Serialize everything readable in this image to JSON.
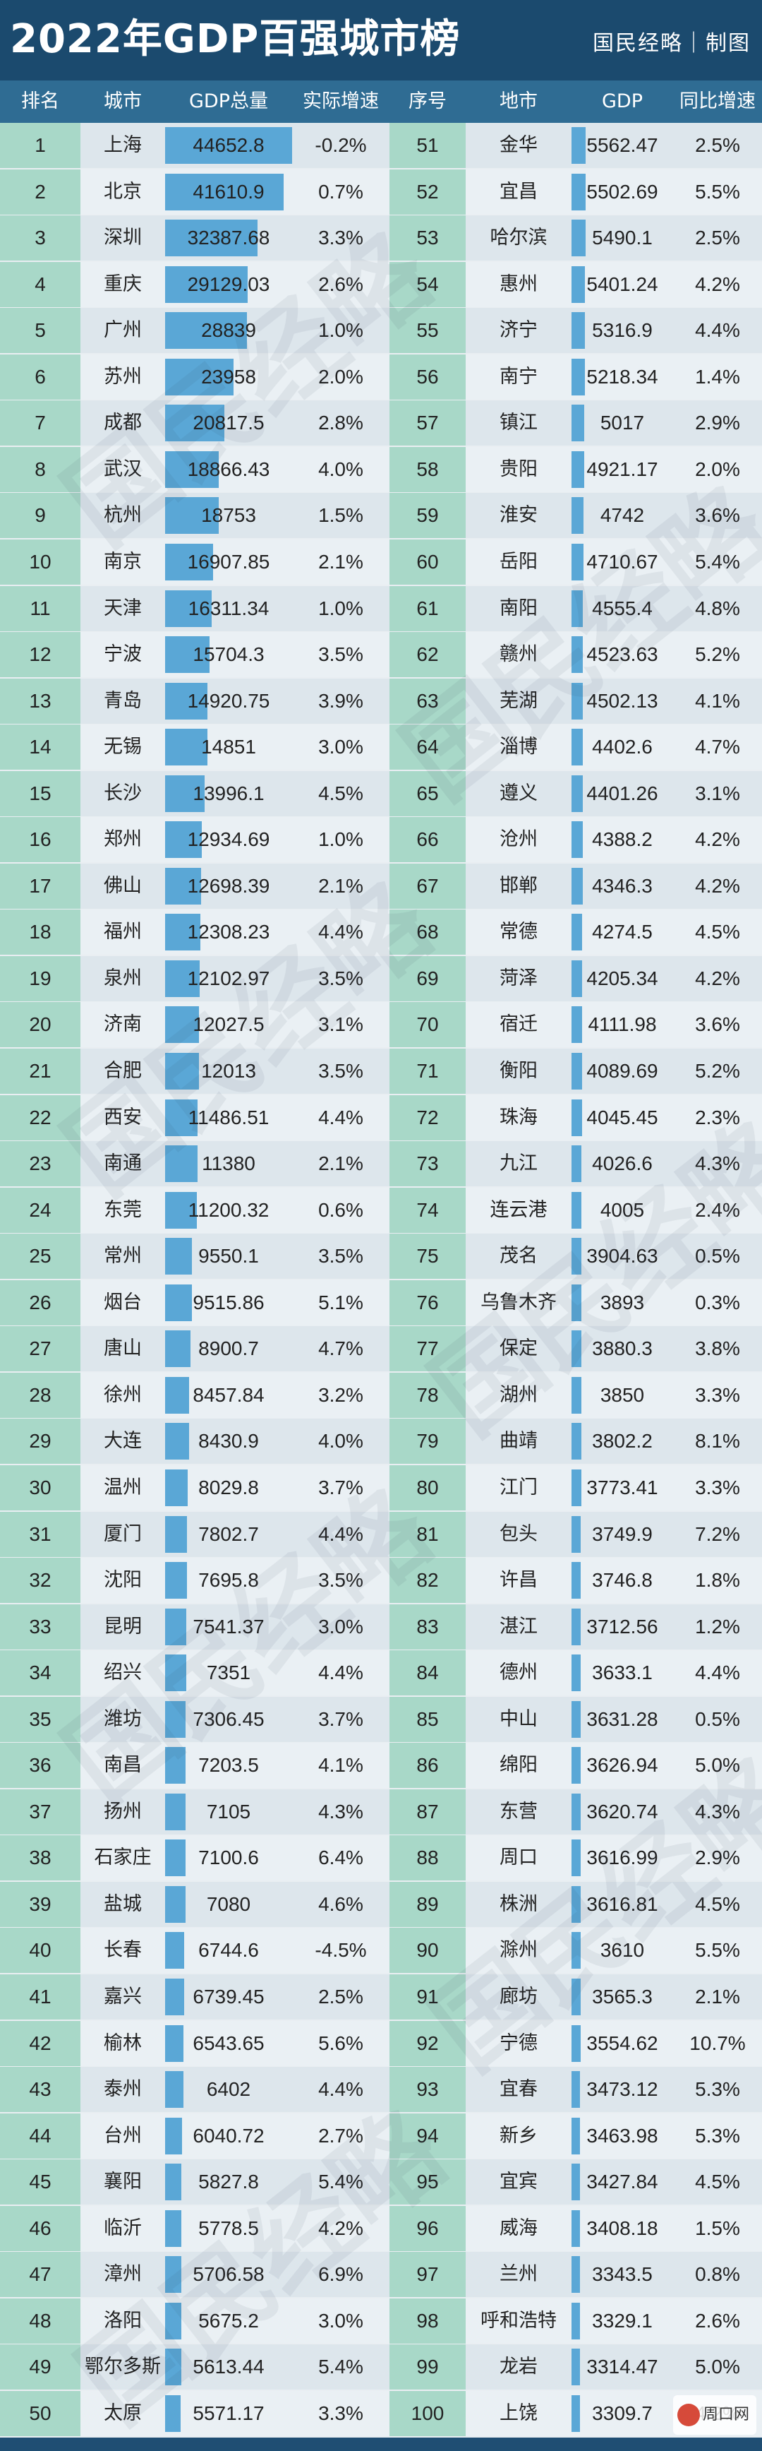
{
  "header": {
    "title": "2022年GDP百强城市榜",
    "brand": "国民经略｜制图"
  },
  "columns": {
    "rank": "排名",
    "city": "城市",
    "gdp": "GDP总量",
    "growth": "实际增速",
    "rank2": "序号",
    "city2": "地市",
    "gdp2": "GDP",
    "growth2": "同比增速"
  },
  "watermark": {
    "text": "国民经略"
  },
  "footer": {
    "label": "周口网"
  },
  "colors": {
    "header_bg": "#1b4a6e",
    "colheader_bg": "#2f6c93",
    "rank_col": "#a8d8c8",
    "row_a": "#dde6ec",
    "row_b": "#eaf0f4",
    "bar": "#5aa7d6"
  },
  "chart_data": {
    "type": "table",
    "title": "2022年GDP百强城市榜",
    "rows": [
      {
        "rank": "1",
        "city": "上海",
        "gdp": "44652.8",
        "growth": "-0.2%"
      },
      {
        "rank": "2",
        "city": "北京",
        "gdp": "41610.9",
        "growth": "0.7%"
      },
      {
        "rank": "3",
        "city": "深圳",
        "gdp": "32387.68",
        "growth": "3.3%"
      },
      {
        "rank": "4",
        "city": "重庆",
        "gdp": "29129.03",
        "growth": "2.6%"
      },
      {
        "rank": "5",
        "city": "广州",
        "gdp": "28839",
        "growth": "1.0%"
      },
      {
        "rank": "6",
        "city": "苏州",
        "gdp": "23958",
        "growth": "2.0%"
      },
      {
        "rank": "7",
        "city": "成都",
        "gdp": "20817.5",
        "growth": "2.8%"
      },
      {
        "rank": "8",
        "city": "武汉",
        "gdp": "18866.43",
        "growth": "4.0%"
      },
      {
        "rank": "9",
        "city": "杭州",
        "gdp": "18753",
        "growth": "1.5%"
      },
      {
        "rank": "10",
        "city": "南京",
        "gdp": "16907.85",
        "growth": "2.1%"
      },
      {
        "rank": "11",
        "city": "天津",
        "gdp": "16311.34",
        "growth": "1.0%"
      },
      {
        "rank": "12",
        "city": "宁波",
        "gdp": "15704.3",
        "growth": "3.5%"
      },
      {
        "rank": "13",
        "city": "青岛",
        "gdp": "14920.75",
        "growth": "3.9%"
      },
      {
        "rank": "14",
        "city": "无锡",
        "gdp": "14851",
        "growth": "3.0%"
      },
      {
        "rank": "15",
        "city": "长沙",
        "gdp": "13996.1",
        "growth": "4.5%"
      },
      {
        "rank": "16",
        "city": "郑州",
        "gdp": "12934.69",
        "growth": "1.0%"
      },
      {
        "rank": "17",
        "city": "佛山",
        "gdp": "12698.39",
        "growth": "2.1%"
      },
      {
        "rank": "18",
        "city": "福州",
        "gdp": "12308.23",
        "growth": "4.4%"
      },
      {
        "rank": "19",
        "city": "泉州",
        "gdp": "12102.97",
        "growth": "3.5%"
      },
      {
        "rank": "20",
        "city": "济南",
        "gdp": "12027.5",
        "growth": "3.1%"
      },
      {
        "rank": "21",
        "city": "合肥",
        "gdp": "12013",
        "growth": "3.5%"
      },
      {
        "rank": "22",
        "city": "西安",
        "gdp": "11486.51",
        "growth": "4.4%"
      },
      {
        "rank": "23",
        "city": "南通",
        "gdp": "11380",
        "growth": "2.1%"
      },
      {
        "rank": "24",
        "city": "东莞",
        "gdp": "11200.32",
        "growth": "0.6%"
      },
      {
        "rank": "25",
        "city": "常州",
        "gdp": "9550.1",
        "growth": "3.5%"
      },
      {
        "rank": "26",
        "city": "烟台",
        "gdp": "9515.86",
        "growth": "5.1%"
      },
      {
        "rank": "27",
        "city": "唐山",
        "gdp": "8900.7",
        "growth": "4.7%"
      },
      {
        "rank": "28",
        "city": "徐州",
        "gdp": "8457.84",
        "growth": "3.2%"
      },
      {
        "rank": "29",
        "city": "大连",
        "gdp": "8430.9",
        "growth": "4.0%"
      },
      {
        "rank": "30",
        "city": "温州",
        "gdp": "8029.8",
        "growth": "3.7%"
      },
      {
        "rank": "31",
        "city": "厦门",
        "gdp": "7802.7",
        "growth": "4.4%"
      },
      {
        "rank": "32",
        "city": "沈阳",
        "gdp": "7695.8",
        "growth": "3.5%"
      },
      {
        "rank": "33",
        "city": "昆明",
        "gdp": "7541.37",
        "growth": "3.0%"
      },
      {
        "rank": "34",
        "city": "绍兴",
        "gdp": "7351",
        "growth": "4.4%"
      },
      {
        "rank": "35",
        "city": "潍坊",
        "gdp": "7306.45",
        "growth": "3.7%"
      },
      {
        "rank": "36",
        "city": "南昌",
        "gdp": "7203.5",
        "growth": "4.1%"
      },
      {
        "rank": "37",
        "city": "扬州",
        "gdp": "7105",
        "growth": "4.3%"
      },
      {
        "rank": "38",
        "city": "石家庄",
        "gdp": "7100.6",
        "growth": "6.4%"
      },
      {
        "rank": "39",
        "city": "盐城",
        "gdp": "7080",
        "growth": "4.6%"
      },
      {
        "rank": "40",
        "city": "长春",
        "gdp": "6744.6",
        "growth": "-4.5%"
      },
      {
        "rank": "41",
        "city": "嘉兴",
        "gdp": "6739.45",
        "growth": "2.5%"
      },
      {
        "rank": "42",
        "city": "榆林",
        "gdp": "6543.65",
        "growth": "5.6%"
      },
      {
        "rank": "43",
        "city": "泰州",
        "gdp": "6402",
        "growth": "4.4%"
      },
      {
        "rank": "44",
        "city": "台州",
        "gdp": "6040.72",
        "growth": "2.7%"
      },
      {
        "rank": "45",
        "city": "襄阳",
        "gdp": "5827.8",
        "growth": "5.4%"
      },
      {
        "rank": "46",
        "city": "临沂",
        "gdp": "5778.5",
        "growth": "4.2%"
      },
      {
        "rank": "47",
        "city": "漳州",
        "gdp": "5706.58",
        "growth": "6.9%"
      },
      {
        "rank": "48",
        "city": "洛阳",
        "gdp": "5675.2",
        "growth": "3.0%"
      },
      {
        "rank": "49",
        "city": "鄂尔多斯",
        "gdp": "5613.44",
        "growth": "5.4%"
      },
      {
        "rank": "50",
        "city": "太原",
        "gdp": "5571.17",
        "growth": "3.3%"
      }
    ],
    "rows2": [
      {
        "rank": "51",
        "city": "金华",
        "gdp": "5562.47",
        "growth": "2.5%"
      },
      {
        "rank": "52",
        "city": "宜昌",
        "gdp": "5502.69",
        "growth": "5.5%"
      },
      {
        "rank": "53",
        "city": "哈尔滨",
        "gdp": "5490.1",
        "growth": "2.5%"
      },
      {
        "rank": "54",
        "city": "惠州",
        "gdp": "5401.24",
        "growth": "4.2%"
      },
      {
        "rank": "55",
        "city": "济宁",
        "gdp": "5316.9",
        "growth": "4.4%"
      },
      {
        "rank": "56",
        "city": "南宁",
        "gdp": "5218.34",
        "growth": "1.4%"
      },
      {
        "rank": "57",
        "city": "镇江",
        "gdp": "5017",
        "growth": "2.9%"
      },
      {
        "rank": "58",
        "city": "贵阳",
        "gdp": "4921.17",
        "growth": "2.0%"
      },
      {
        "rank": "59",
        "city": "淮安",
        "gdp": "4742",
        "growth": "3.6%"
      },
      {
        "rank": "60",
        "city": "岳阳",
        "gdp": "4710.67",
        "growth": "5.4%"
      },
      {
        "rank": "61",
        "city": "南阳",
        "gdp": "4555.4",
        "growth": "4.8%"
      },
      {
        "rank": "62",
        "city": "赣州",
        "gdp": "4523.63",
        "growth": "5.2%"
      },
      {
        "rank": "63",
        "city": "芜湖",
        "gdp": "4502.13",
        "growth": "4.1%"
      },
      {
        "rank": "64",
        "city": "淄博",
        "gdp": "4402.6",
        "growth": "4.7%"
      },
      {
        "rank": "65",
        "city": "遵义",
        "gdp": "4401.26",
        "growth": "3.1%"
      },
      {
        "rank": "66",
        "city": "沧州",
        "gdp": "4388.2",
        "growth": "4.2%"
      },
      {
        "rank": "67",
        "city": "邯郸",
        "gdp": "4346.3",
        "growth": "4.2%"
      },
      {
        "rank": "68",
        "city": "常德",
        "gdp": "4274.5",
        "growth": "4.5%"
      },
      {
        "rank": "69",
        "city": "菏泽",
        "gdp": "4205.34",
        "growth": "4.2%"
      },
      {
        "rank": "70",
        "city": "宿迁",
        "gdp": "4111.98",
        "growth": "3.6%"
      },
      {
        "rank": "71",
        "city": "衡阳",
        "gdp": "4089.69",
        "growth": "5.2%"
      },
      {
        "rank": "72",
        "city": "珠海",
        "gdp": "4045.45",
        "growth": "2.3%"
      },
      {
        "rank": "73",
        "city": "九江",
        "gdp": "4026.6",
        "growth": "4.3%"
      },
      {
        "rank": "74",
        "city": "连云港",
        "gdp": "4005",
        "growth": "2.4%"
      },
      {
        "rank": "75",
        "city": "茂名",
        "gdp": "3904.63",
        "growth": "0.5%"
      },
      {
        "rank": "76",
        "city": "乌鲁木齐",
        "gdp": "3893",
        "growth": "0.3%"
      },
      {
        "rank": "77",
        "city": "保定",
        "gdp": "3880.3",
        "growth": "3.8%"
      },
      {
        "rank": "78",
        "city": "湖州",
        "gdp": "3850",
        "growth": "3.3%"
      },
      {
        "rank": "79",
        "city": "曲靖",
        "gdp": "3802.2",
        "growth": "8.1%"
      },
      {
        "rank": "80",
        "city": "江门",
        "gdp": "3773.41",
        "growth": "3.3%"
      },
      {
        "rank": "81",
        "city": "包头",
        "gdp": "3749.9",
        "growth": "7.2%"
      },
      {
        "rank": "82",
        "city": "许昌",
        "gdp": "3746.8",
        "growth": "1.8%"
      },
      {
        "rank": "83",
        "city": "湛江",
        "gdp": "3712.56",
        "growth": "1.2%"
      },
      {
        "rank": "84",
        "city": "德州",
        "gdp": "3633.1",
        "growth": "4.4%"
      },
      {
        "rank": "85",
        "city": "中山",
        "gdp": "3631.28",
        "growth": "0.5%"
      },
      {
        "rank": "86",
        "city": "绵阳",
        "gdp": "3626.94",
        "growth": "5.0%"
      },
      {
        "rank": "87",
        "city": "东营",
        "gdp": "3620.74",
        "growth": "4.3%"
      },
      {
        "rank": "88",
        "city": "周口",
        "gdp": "3616.99",
        "growth": "2.9%"
      },
      {
        "rank": "89",
        "city": "株洲",
        "gdp": "3616.81",
        "growth": "4.5%"
      },
      {
        "rank": "90",
        "city": "滁州",
        "gdp": "3610",
        "growth": "5.5%"
      },
      {
        "rank": "91",
        "city": "廊坊",
        "gdp": "3565.3",
        "growth": "2.1%"
      },
      {
        "rank": "92",
        "city": "宁德",
        "gdp": "3554.62",
        "growth": "10.7%"
      },
      {
        "rank": "93",
        "city": "宜春",
        "gdp": "3473.12",
        "growth": "5.3%"
      },
      {
        "rank": "94",
        "city": "新乡",
        "gdp": "3463.98",
        "growth": "5.3%"
      },
      {
        "rank": "95",
        "city": "宜宾",
        "gdp": "3427.84",
        "growth": "4.5%"
      },
      {
        "rank": "96",
        "city": "威海",
        "gdp": "3408.18",
        "growth": "1.5%"
      },
      {
        "rank": "97",
        "city": "兰州",
        "gdp": "3343.5",
        "growth": "0.8%"
      },
      {
        "rank": "98",
        "city": "呼和浩特",
        "gdp": "3329.1",
        "growth": "2.6%"
      },
      {
        "rank": "99",
        "city": "龙岩",
        "gdp": "3314.47",
        "growth": "5.0%"
      },
      {
        "rank": "100",
        "city": "上饶",
        "gdp": "3309.7",
        "growth": "4.2%"
      }
    ]
  }
}
